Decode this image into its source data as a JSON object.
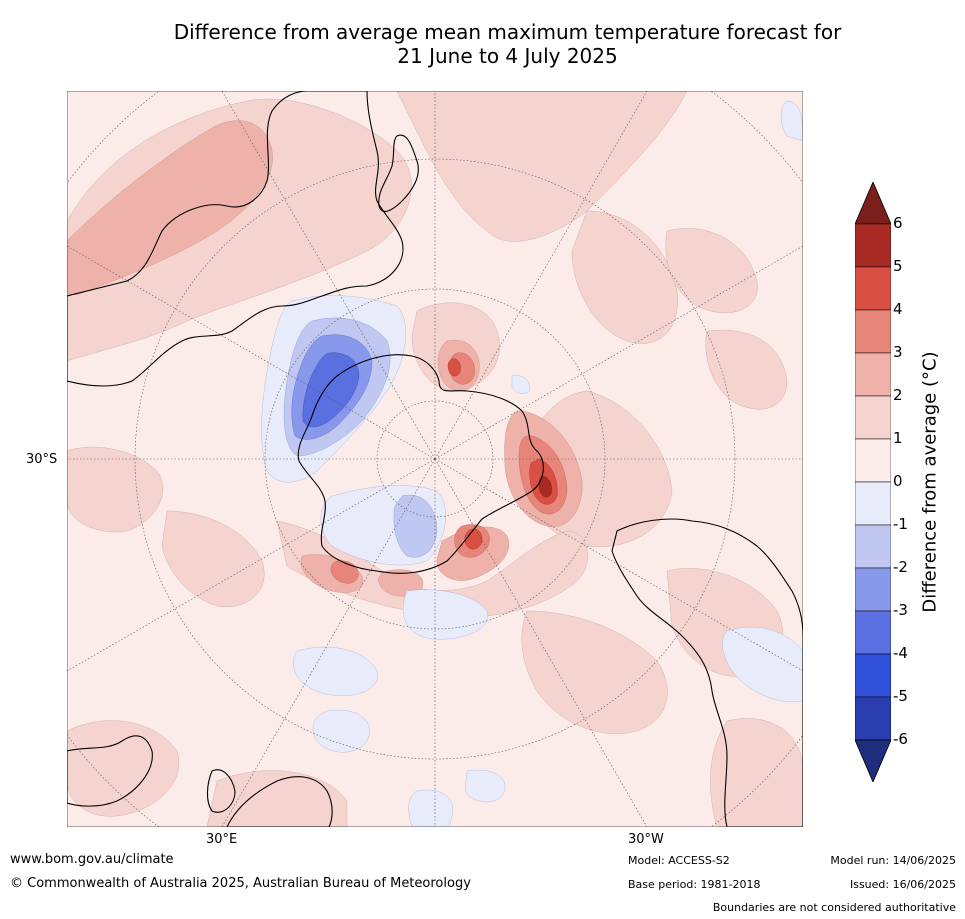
{
  "title": {
    "line1": "Difference from average mean maximum temperature forecast for",
    "line2": "21 June to 4 July 2025"
  },
  "map": {
    "projection": "south-polar-stereographic",
    "lat_label": "30°S",
    "lon_labels": {
      "e30": "30°E",
      "w30": "30°W"
    },
    "colors": {
      "land_outline": "#000000",
      "graticule": "#555555"
    }
  },
  "colorbar": {
    "title": "Difference from average (°C)",
    "ticks": [
      "6",
      "5",
      "4",
      "3",
      "2",
      "1",
      "0",
      "-1",
      "-2",
      "-3",
      "-4",
      "-5",
      "-6"
    ],
    "levels": [
      {
        "range": "above 6",
        "color": "#7a1f1a"
      },
      {
        "range": "5 to 6",
        "color": "#a82a23"
      },
      {
        "range": "4 to 5",
        "color": "#d94f43"
      },
      {
        "range": "3 to 4",
        "color": "#e8857b"
      },
      {
        "range": "2 to 3",
        "color": "#efb2ab"
      },
      {
        "range": "1 to 2",
        "color": "#f5d4cf"
      },
      {
        "range": "0 to 1",
        "color": "#fbece9"
      },
      {
        "range": "-1 to 0",
        "color": "#e7ebfa"
      },
      {
        "range": "-2 to -1",
        "color": "#c0c8f2"
      },
      {
        "range": "-3 to -2",
        "color": "#8898ea"
      },
      {
        "range": "-4 to -3",
        "color": "#5a6fe0"
      },
      {
        "range": "-5 to -4",
        "color": "#2f4fd8"
      },
      {
        "range": "-6 to -5",
        "color": "#2a3eaf"
      },
      {
        "range": "below -6",
        "color": "#1f2d7e"
      }
    ]
  },
  "footer": {
    "website": "www.bom.gov.au/climate",
    "copyright": "© Commonwealth of Australia 2025, Australian Bureau of Meteorology",
    "model": "Model: ACCESS-S2",
    "base_period": "Base period: 1981-2018",
    "model_run": "Model run: 14/06/2025",
    "issued": "Issued: 16/06/2025",
    "disclaimer": "Boundaries are not considered authoritative"
  }
}
